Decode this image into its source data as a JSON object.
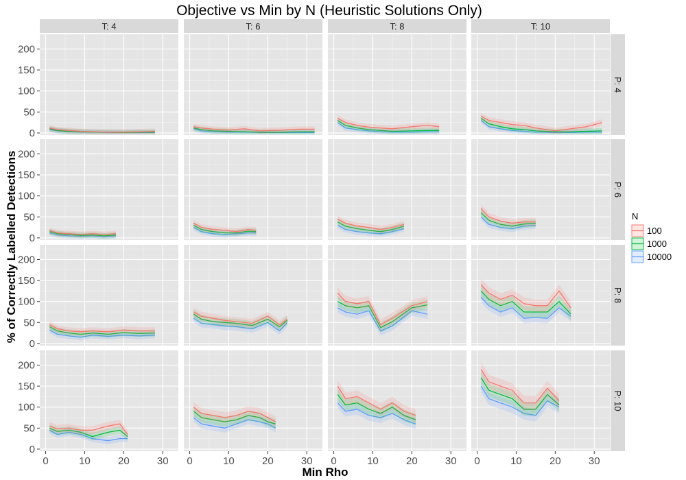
{
  "chart_data": {
    "type": "line",
    "title": "Objective vs Min by N (Heuristic Solutions Only)",
    "xlabel": "Min Rho",
    "ylabel": "% of Correctly Labelled Detections",
    "xlim": [
      -1.5,
      34
    ],
    "ylim": [
      -5,
      235
    ],
    "x_ticks": [
      0,
      10,
      20,
      30
    ],
    "y_ticks": [
      0,
      50,
      100,
      150,
      200
    ],
    "grid": true,
    "legend": {
      "title": "N",
      "position": "right",
      "entries": [
        "100",
        "1000",
        "10000"
      ]
    },
    "colors": {
      "100": "#f8766d",
      "1000": "#00ba38",
      "10000": "#619cff"
    },
    "facet_columns": [
      "T: 4",
      "T: 6",
      "T: 8",
      "T: 10"
    ],
    "facet_rows": [
      "P: 4",
      "P: 6",
      "P: 8",
      "P: 10"
    ],
    "panels": [
      {
        "col": "T: 4",
        "row": "P: 4",
        "x": [
          1,
          3,
          6,
          9,
          12,
          16,
          20,
          24,
          28
        ],
        "series": [
          {
            "name": "100",
            "values": [
              12,
              8,
              6,
              4,
              3,
              2,
              2,
              3,
              4
            ]
          },
          {
            "name": "1000",
            "values": [
              10,
              6,
              4,
              3,
              2,
              2,
              1,
              2,
              2
            ]
          },
          {
            "name": "10000",
            "values": [
              8,
              5,
              3,
              2,
              2,
              1,
              1,
              1,
              1
            ]
          }
        ]
      },
      {
        "col": "T: 6",
        "row": "P: 4",
        "x": [
          1,
          3,
          6,
          10,
          14,
          18,
          24,
          28,
          32
        ],
        "series": [
          {
            "name": "100",
            "values": [
              15,
              12,
              9,
              7,
              10,
              5,
              7,
              9,
              9
            ]
          },
          {
            "name": "1000",
            "values": [
              12,
              8,
              5,
              4,
              3,
              2,
              2,
              3,
              3
            ]
          },
          {
            "name": "10000",
            "values": [
              10,
              5,
              3,
              2,
              2,
              1,
              1,
              1,
              1
            ]
          }
        ]
      },
      {
        "col": "T: 8",
        "row": "P: 4",
        "x": [
          1,
          3,
          6,
          9,
          12,
          15,
          20,
          24,
          27
        ],
        "series": [
          {
            "name": "100",
            "values": [
              35,
              25,
              18,
              14,
              12,
              10,
              15,
              18,
              15
            ]
          },
          {
            "name": "1000",
            "values": [
              30,
              18,
              12,
              8,
              6,
              4,
              5,
              6,
              6
            ]
          },
          {
            "name": "10000",
            "values": [
              25,
              12,
              8,
              5,
              3,
              2,
              2,
              3,
              3
            ]
          }
        ]
      },
      {
        "col": "T: 10",
        "row": "P: 4",
        "x": [
          1,
          3,
          6,
          9,
          12,
          15,
          20,
          24,
          28,
          32
        ],
        "series": [
          {
            "name": "100",
            "values": [
              40,
              30,
              25,
              20,
              18,
              12,
              5,
              10,
              15,
              25
            ]
          },
          {
            "name": "1000",
            "values": [
              35,
              22,
              15,
              10,
              8,
              5,
              3,
              3,
              4,
              5
            ]
          },
          {
            "name": "10000",
            "values": [
              30,
              15,
              10,
              6,
              4,
              2,
              1,
              1,
              2,
              2
            ]
          }
        ]
      },
      {
        "col": "T: 4",
        "row": "P: 6",
        "x": [
          1,
          3,
          6,
          9,
          12,
          15,
          18
        ],
        "series": [
          {
            "name": "100",
            "values": [
              18,
              12,
              10,
              8,
              10,
              8,
              10
            ]
          },
          {
            "name": "1000",
            "values": [
              15,
              10,
              8,
              6,
              7,
              5,
              7
            ]
          },
          {
            "name": "10000",
            "values": [
              12,
              7,
              5,
              4,
              5,
              3,
              5
            ]
          }
        ]
      },
      {
        "col": "T: 6",
        "row": "P: 6",
        "x": [
          1,
          3,
          6,
          9,
          12,
          15,
          17
        ],
        "series": [
          {
            "name": "100",
            "values": [
              35,
              25,
              20,
              18,
              15,
              20,
              18
            ]
          },
          {
            "name": "1000",
            "values": [
              30,
              20,
              15,
              12,
              12,
              16,
              15
            ]
          },
          {
            "name": "10000",
            "values": [
              25,
              15,
              10,
              8,
              10,
              12,
              12
            ]
          }
        ]
      },
      {
        "col": "T: 8",
        "row": "P: 6",
        "x": [
          1,
          3,
          6,
          9,
          12,
          15,
          18
        ],
        "series": [
          {
            "name": "100",
            "values": [
              45,
              35,
              28,
              25,
              20,
              25,
              32
            ]
          },
          {
            "name": "1000",
            "values": [
              38,
              28,
              22,
              18,
              15,
              20,
              28
            ]
          },
          {
            "name": "10000",
            "values": [
              30,
              20,
              15,
              12,
              10,
              15,
              22
            ]
          }
        ]
      },
      {
        "col": "T: 10",
        "row": "P: 6",
        "x": [
          1,
          3,
          6,
          9,
          12,
          15
        ],
        "series": [
          {
            "name": "100",
            "values": [
              70,
              50,
              40,
              35,
              38,
              38
            ]
          },
          {
            "name": "1000",
            "values": [
              60,
              42,
              32,
              28,
              33,
              35
            ]
          },
          {
            "name": "10000",
            "values": [
              50,
              32,
              25,
              22,
              28,
              30
            ]
          }
        ]
      },
      {
        "col": "T: 4",
        "row": "P: 8",
        "x": [
          1,
          3,
          6,
          9,
          12,
          16,
          20,
          24,
          28
        ],
        "series": [
          {
            "name": "100",
            "values": [
              45,
              35,
              30,
              28,
              30,
              28,
              32,
              30,
              30
            ]
          },
          {
            "name": "1000",
            "values": [
              40,
              30,
              25,
              22,
              25,
              22,
              26,
              24,
              25
            ]
          },
          {
            "name": "10000",
            "values": [
              32,
              22,
              18,
              15,
              20,
              17,
              20,
              18,
              20
            ]
          }
        ]
      },
      {
        "col": "T: 6",
        "row": "P: 8",
        "x": [
          1,
          3,
          6,
          9,
          12,
          16,
          20,
          23,
          25
        ],
        "series": [
          {
            "name": "100",
            "values": [
              75,
              65,
              60,
              55,
              52,
              48,
              65,
              45,
              58
            ]
          },
          {
            "name": "1000",
            "values": [
              70,
              58,
              52,
              50,
              48,
              43,
              58,
              40,
              55
            ]
          },
          {
            "name": "10000",
            "values": [
              60,
              48,
              45,
              42,
              40,
              35,
              50,
              30,
              50
            ]
          }
        ]
      },
      {
        "col": "T: 8",
        "row": "P: 8",
        "x": [
          1,
          3,
          6,
          9,
          12,
          15,
          20,
          24
        ],
        "series": [
          {
            "name": "100",
            "values": [
              120,
              100,
              95,
              100,
              45,
              60,
              90,
              100
            ]
          },
          {
            "name": "1000",
            "values": [
              100,
              90,
              85,
              90,
              38,
              52,
              85,
              92
            ]
          },
          {
            "name": "10000",
            "values": [
              85,
              75,
              70,
              78,
              30,
              42,
              78,
              70
            ]
          }
        ]
      },
      {
        "col": "T: 10",
        "row": "P: 8",
        "x": [
          1,
          3,
          6,
          9,
          12,
          15,
          18,
          21,
          24
        ],
        "series": [
          {
            "name": "100",
            "values": [
              140,
              120,
              105,
              115,
              95,
              90,
              90,
              125,
              85
            ]
          },
          {
            "name": "1000",
            "values": [
              125,
              105,
              90,
              100,
              75,
              75,
              75,
              100,
              70
            ]
          },
          {
            "name": "10000",
            "values": [
              110,
              90,
              75,
              85,
              60,
              62,
              60,
              85,
              65
            ]
          }
        ]
      },
      {
        "col": "T: 4",
        "row": "P: 10",
        "x": [
          1,
          3,
          6,
          9,
          12,
          16,
          19,
          21
        ],
        "series": [
          {
            "name": "100",
            "values": [
              55,
              48,
              50,
              45,
              45,
              55,
              60,
              35
            ]
          },
          {
            "name": "1000",
            "values": [
              50,
              42,
              45,
              40,
              30,
              40,
              45,
              30
            ]
          },
          {
            "name": "10000",
            "values": [
              45,
              35,
              40,
              35,
              25,
              20,
              25,
              25
            ]
          }
        ]
      },
      {
        "col": "T: 6",
        "row": "P: 10",
        "x": [
          1,
          3,
          6,
          9,
          12,
          15,
          18,
          20,
          22
        ],
        "series": [
          {
            "name": "100",
            "values": [
              100,
              85,
              80,
              75,
              80,
              90,
              85,
              75,
              65
            ]
          },
          {
            "name": "1000",
            "values": [
              90,
              75,
              70,
              65,
              70,
              80,
              75,
              65,
              60
            ]
          },
          {
            "name": "10000",
            "values": [
              75,
              60,
              55,
              50,
              60,
              70,
              65,
              60,
              50
            ]
          }
        ]
      },
      {
        "col": "T: 8",
        "row": "P: 10",
        "x": [
          1,
          3,
          6,
          9,
          12,
          15,
          18,
          21
        ],
        "series": [
          {
            "name": "100",
            "values": [
              150,
              120,
              125,
              110,
              95,
              110,
              90,
              80
            ]
          },
          {
            "name": "1000",
            "values": [
              130,
              105,
              110,
              95,
              85,
              100,
              80,
              70
            ]
          },
          {
            "name": "10000",
            "values": [
              110,
              90,
              95,
              80,
              75,
              85,
              70,
              60
            ]
          }
        ]
      },
      {
        "col": "T: 10",
        "row": "P: 10",
        "x": [
          1,
          3,
          6,
          9,
          12,
          15,
          18,
          21
        ],
        "series": [
          {
            "name": "100",
            "values": [
              190,
              160,
              150,
              140,
              110,
              110,
              145,
              115
            ]
          },
          {
            "name": "1000",
            "values": [
              170,
              140,
              130,
              120,
              95,
              95,
              130,
              105
            ]
          },
          {
            "name": "10000",
            "values": [
              150,
              120,
              110,
              100,
              85,
              80,
              115,
              100
            ]
          }
        ]
      }
    ]
  }
}
